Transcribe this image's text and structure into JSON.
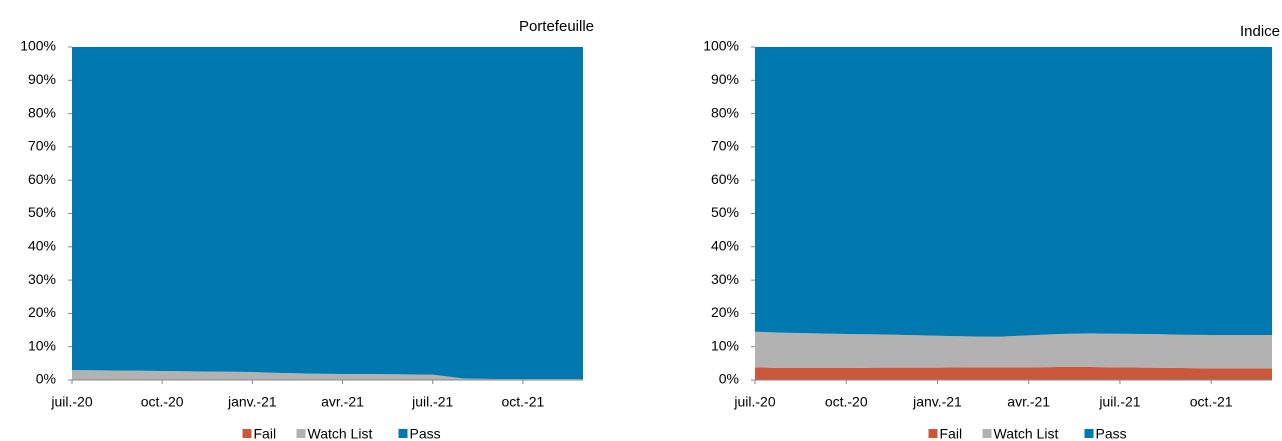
{
  "chart_data": [
    {
      "type": "area",
      "stacked": true,
      "title": "Portefeuille",
      "categories": [
        "juil.-20",
        null,
        null,
        "oct.-20",
        null,
        null,
        "janv.-21",
        null,
        null,
        "avr.-21",
        null,
        null,
        "juil.-21",
        null,
        null,
        "oct.-21",
        null,
        null
      ],
      "series": [
        {
          "name": "Fail",
          "color": "#c9593a",
          "values": [
            0,
            0,
            0,
            0,
            0,
            0,
            0,
            0,
            0,
            0,
            0,
            0,
            0,
            0,
            0,
            0,
            0,
            0
          ]
        },
        {
          "name": "Watch List",
          "color": "#b2b2b2",
          "values": [
            3,
            2.9,
            2.8,
            2.7,
            2.6,
            2.5,
            2.4,
            2.1,
            1.9,
            1.8,
            1.8,
            1.7,
            1.6,
            0.5,
            0.3,
            0.3,
            0.3,
            0.3
          ]
        },
        {
          "name": "Pass",
          "color": "#0078b0",
          "values": [
            97,
            97.1,
            97.2,
            97.3,
            97.4,
            97.5,
            97.6,
            97.9,
            98.1,
            98.2,
            98.2,
            98.3,
            98.4,
            99.5,
            99.7,
            99.7,
            99.7,
            99.7
          ]
        }
      ],
      "ylim": [
        0,
        100
      ],
      "yticks": [
        {
          "value": 0,
          "label": "0%"
        },
        {
          "value": 10,
          "label": "10%"
        },
        {
          "value": 20,
          "label": "20%"
        },
        {
          "value": 30,
          "label": "30%"
        },
        {
          "value": 40,
          "label": "40%"
        },
        {
          "value": 50,
          "label": "50%"
        },
        {
          "value": 60,
          "label": "60%"
        },
        {
          "value": 70,
          "label": "70%"
        },
        {
          "value": 80,
          "label": "80%"
        },
        {
          "value": 90,
          "label": "90%"
        },
        {
          "value": 100,
          "label": "100%"
        }
      ],
      "legend": "bottom"
    },
    {
      "type": "area",
      "stacked": true,
      "title": "Indice",
      "categories": [
        "juil.-20",
        null,
        null,
        "oct.-20",
        null,
        null,
        "janv.-21",
        null,
        null,
        "avr.-21",
        null,
        null,
        "juil.-21",
        null,
        null,
        "oct.-21",
        null,
        null
      ],
      "series": [
        {
          "name": "Fail",
          "color": "#c9593a",
          "values": [
            3.8,
            3.6,
            3.6,
            3.6,
            3.7,
            3.7,
            3.7,
            3.8,
            3.8,
            3.8,
            3.9,
            3.9,
            3.8,
            3.7,
            3.6,
            3.5,
            3.5,
            3.5
          ]
        },
        {
          "name": "Watch List",
          "color": "#b2b2b2",
          "values": [
            10.7,
            10.6,
            10.4,
            10.2,
            10.0,
            9.8,
            9.6,
            9.3,
            9.2,
            9.6,
            9.9,
            10.1,
            10.1,
            10.1,
            10.0,
            10.0,
            10.0,
            10.0
          ]
        },
        {
          "name": "Pass",
          "color": "#0078b0",
          "values": [
            85.5,
            85.8,
            86,
            86.2,
            86.3,
            86.5,
            86.7,
            86.9,
            87,
            86.6,
            86.2,
            86,
            86.1,
            86.2,
            86.4,
            86.5,
            86.5,
            86.5
          ]
        }
      ],
      "ylim": [
        0,
        100
      ],
      "yticks": [
        {
          "value": 0,
          "label": "0%"
        },
        {
          "value": 10,
          "label": "10%"
        },
        {
          "value": 20,
          "label": "20%"
        },
        {
          "value": 30,
          "label": "30%"
        },
        {
          "value": 40,
          "label": "40%"
        },
        {
          "value": 50,
          "label": "50%"
        },
        {
          "value": 60,
          "label": "60%"
        },
        {
          "value": 70,
          "label": "70%"
        },
        {
          "value": 80,
          "label": "80%"
        },
        {
          "value": 90,
          "label": "90%"
        },
        {
          "value": 100,
          "label": "100%"
        }
      ],
      "legend": "bottom"
    }
  ]
}
